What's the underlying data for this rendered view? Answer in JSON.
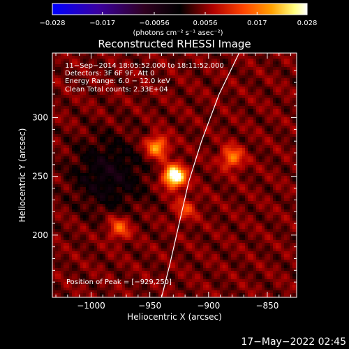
{
  "chart_data": {
    "type": "heatmap",
    "title": "Reconstructed RHESSI Image",
    "xlabel": "Heliocentric X (arcsec)",
    "ylabel": "Heliocentric Y (arcsec)",
    "xlim": [
      -1033,
      -825
    ],
    "ylim": [
      147,
      355
    ],
    "x_ticks": [
      -1000,
      -950,
      -900,
      -850
    ],
    "y_ticks": [
      200,
      250,
      300
    ],
    "x_tick_labels": [
      "−1000",
      "−950",
      "−900",
      "−850"
    ],
    "y_tick_labels": [
      "200",
      "250",
      "300"
    ],
    "colorbar": {
      "label": "(photons cm⁻² s⁻¹ asec⁻²)",
      "range": [
        -0.028,
        0.028
      ],
      "ticks": [
        -0.028,
        -0.017,
        -0.0056,
        0.0056,
        0.017,
        0.028
      ],
      "tick_labels": [
        "−0.028",
        "−0.017",
        "−0.0056",
        "0.0056",
        "0.017",
        "0.028"
      ],
      "colors": [
        "#0000ff",
        "#3a00a0",
        "#300020",
        "#000000",
        "#b00000",
        "#ff4400",
        "#ffa000",
        "#ffff80",
        "#ffffff"
      ]
    },
    "annotations": [
      "11−Sep−2014 18:05:52.000 to 18:11:52.000",
      "Detectors: 3F 6F 9F, Att 0",
      "Energy Range: 6.0 − 12.0 keV",
      "Clean     Total counts: 2.33E+04"
    ],
    "peak": {
      "label": "Position of Peak = [−929,250]",
      "x": -929,
      "y": 250,
      "value": 0.028
    },
    "sources": [
      {
        "x": -929,
        "y": 250,
        "value": 0.028
      },
      {
        "x": -944,
        "y": 275,
        "value": 0.016
      },
      {
        "x": -880,
        "y": 266,
        "value": 0.013
      },
      {
        "x": -976,
        "y": 206,
        "value": 0.011
      },
      {
        "x": -920,
        "y": 222,
        "value": 0.008
      }
    ],
    "limb_curve": [
      [
        -940,
        147
      ],
      [
        -933,
        175
      ],
      [
        -925,
        210
      ],
      [
        -917,
        245
      ],
      [
        -906,
        280
      ],
      [
        -891,
        320
      ],
      [
        -874,
        355
      ]
    ]
  },
  "footer": {
    "timestamp": "17−May−2022 02:45"
  }
}
